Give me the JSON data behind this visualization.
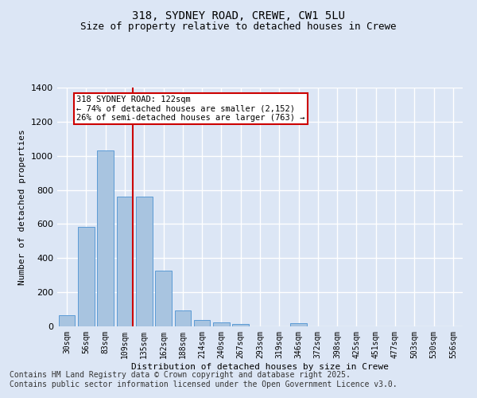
{
  "title1": "318, SYDNEY ROAD, CREWE, CW1 5LU",
  "title2": "Size of property relative to detached houses in Crewe",
  "xlabel": "Distribution of detached houses by size in Crewe",
  "ylabel": "Number of detached properties",
  "categories": [
    "30sqm",
    "56sqm",
    "83sqm",
    "109sqm",
    "135sqm",
    "162sqm",
    "188sqm",
    "214sqm",
    "240sqm",
    "267sqm",
    "293sqm",
    "319sqm",
    "346sqm",
    "372sqm",
    "398sqm",
    "425sqm",
    "451sqm",
    "477sqm",
    "503sqm",
    "530sqm",
    "556sqm"
  ],
  "values": [
    65,
    585,
    1030,
    760,
    760,
    325,
    95,
    38,
    22,
    14,
    0,
    0,
    20,
    0,
    0,
    0,
    0,
    0,
    0,
    0,
    0
  ],
  "bar_color": "#a8c4e0",
  "bar_edge_color": "#5b9bd5",
  "background_color": "#dce6f5",
  "grid_color": "#ffffff",
  "vline_color": "#cc0000",
  "annotation_text": "318 SYDNEY ROAD: 122sqm\n← 74% of detached houses are smaller (2,152)\n26% of semi-detached houses are larger (763) →",
  "annotation_box_color": "#cc0000",
  "ylim": [
    0,
    1400
  ],
  "yticks": [
    0,
    200,
    400,
    600,
    800,
    1000,
    1200,
    1400
  ],
  "footer": "Contains HM Land Registry data © Crown copyright and database right 2025.\nContains public sector information licensed under the Open Government Licence v3.0.",
  "footer_fontsize": 7,
  "title_fontsize1": 10,
  "title_fontsize2": 9
}
